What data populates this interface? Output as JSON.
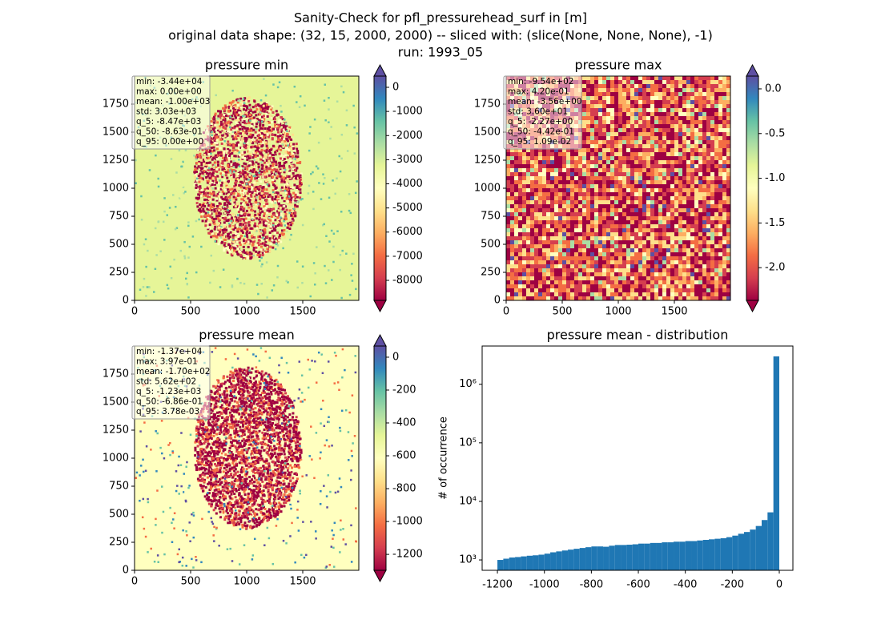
{
  "suptitle": [
    "Sanity-Check for pfl_pressurehead_surf in [m]",
    "original data shape: (32, 15, 2000, 2000) -- sliced with: (slice(None, None, None), -1)",
    "run: 1993_05"
  ],
  "chart_data": [
    {
      "type": "heatmap",
      "title": "pressure min",
      "stats": [
        "min: -3.44e+04",
        "max: 0.00e+00",
        "mean: -1.00e+03",
        "std: 3.03e+03",
        "q_5: -8.47e+03",
        "q_50: -8.63e-01",
        "q_95: 0.00e+00"
      ],
      "xlim": [
        0,
        2000
      ],
      "ylim": [
        0,
        2000
      ],
      "xticks": [
        0,
        500,
        1000,
        1500
      ],
      "yticks": [
        0,
        250,
        500,
        750,
        1000,
        1250,
        1500,
        1750
      ],
      "clim": [
        -8830,
        465
      ],
      "cticks": [
        0,
        -1000,
        -2000,
        -3000,
        -4000,
        -5000,
        -6000,
        -7000,
        -8000
      ],
      "colormap": [
        "#9e0142",
        "#d53e4f",
        "#f46d43",
        "#fdae61",
        "#fee08b",
        "#ffffbf",
        "#e6f598",
        "#abdda4",
        "#66c2a5",
        "#3288bd",
        "#5e4fa2"
      ],
      "colorbar_extend": "both"
    },
    {
      "type": "heatmap",
      "title": "pressure max",
      "stats": [
        "min: -9.54e+02",
        "max: 4.20e-01",
        "mean: -3.56e+00",
        "std: 3.60e+01",
        "q_5: -2.27e+00",
        "q_50: -4.42e-01",
        "q_95: 1.09e-02"
      ],
      "xlim": [
        0,
        2000
      ],
      "ylim": [
        0,
        2000
      ],
      "xticks": [
        0,
        500,
        1000,
        1500
      ],
      "yticks": [
        0,
        250,
        500,
        750,
        1000,
        1250,
        1500,
        1750
      ],
      "clim": [
        -2.366,
        0.143
      ],
      "cticks": [
        {
          "value": 0,
          "label": "0.0"
        },
        -0.5,
        {
          "value": -1,
          "label": "-1.0"
        },
        -1.5,
        {
          "value": -2,
          "label": "-2.0"
        }
      ],
      "colormap": [
        "#9e0142",
        "#d53e4f",
        "#f46d43",
        "#fdae61",
        "#fee08b",
        "#ffffbf",
        "#e6f598",
        "#abdda4",
        "#66c2a5",
        "#3288bd",
        "#5e4fa2"
      ],
      "colorbar_extend": "both"
    },
    {
      "type": "heatmap",
      "title": "pressure mean",
      "stats": [
        "min: -1.37e+04",
        "max: 3.97e-01",
        "mean: -1.70e+02",
        "std: 5.62e+02",
        "q_5: -1.23e+03",
        "q_50: -6.86e-01",
        "q_95: 3.78e-03"
      ],
      "xlim": [
        0,
        2000
      ],
      "ylim": [
        0,
        2000
      ],
      "xticks": [
        0,
        500,
        1000,
        1500
      ],
      "yticks": [
        0,
        250,
        500,
        750,
        1000,
        1250,
        1500,
        1750
      ],
      "clim": [
        -1297,
        68
      ],
      "cticks": [
        0,
        -200,
        -400,
        -600,
        -800,
        -1000,
        -1200
      ],
      "colormap": [
        "#9e0142",
        "#d53e4f",
        "#f46d43",
        "#fdae61",
        "#fee08b",
        "#ffffbf",
        "#e6f598",
        "#abdda4",
        "#66c2a5",
        "#3288bd",
        "#5e4fa2"
      ],
      "colorbar_extend": "both"
    },
    {
      "type": "histogram",
      "title": "pressure mean - distribution",
      "ylabel": "# of occurrence",
      "color": "#1f77b4",
      "bins": [
        -1200,
        -1175,
        -1150,
        -1125,
        -1100,
        -1075,
        -1050,
        -1025,
        -1000,
        -975,
        -950,
        -925,
        -900,
        -875,
        -850,
        -825,
        -800,
        -775,
        -750,
        -725,
        -700,
        -675,
        -650,
        -625,
        -600,
        -575,
        -550,
        -525,
        -500,
        -475,
        -450,
        -425,
        -400,
        -375,
        -350,
        -325,
        -300,
        -275,
        -250,
        -225,
        -200,
        -175,
        -150,
        -125,
        -100,
        -75,
        -50,
        -25,
        0
      ],
      "values": [
        1000,
        1050,
        1100,
        1120,
        1150,
        1180,
        1200,
        1230,
        1280,
        1350,
        1400,
        1450,
        1500,
        1550,
        1600,
        1650,
        1700,
        1700,
        1680,
        1750,
        1800,
        1800,
        1820,
        1850,
        1900,
        1900,
        1950,
        1950,
        2000,
        2000,
        2050,
        2050,
        2100,
        2100,
        2150,
        2200,
        2250,
        2300,
        2350,
        2450,
        2600,
        2800,
        3000,
        3300,
        3800,
        4800,
        6500,
        3000000
      ],
      "xlim": [
        -1265,
        58
      ],
      "xticks": [
        -1200,
        -1000,
        -800,
        -600,
        -400,
        -200,
        0
      ],
      "log_y": true,
      "ylim": [
        665,
        4500000
      ],
      "yticks": [
        {
          "value": 1000,
          "label": "10³"
        },
        {
          "value": 10000,
          "label": "10⁴"
        },
        {
          "value": 100000,
          "label": "10⁵"
        },
        {
          "value": 1000000,
          "label": "10⁶"
        }
      ]
    }
  ]
}
